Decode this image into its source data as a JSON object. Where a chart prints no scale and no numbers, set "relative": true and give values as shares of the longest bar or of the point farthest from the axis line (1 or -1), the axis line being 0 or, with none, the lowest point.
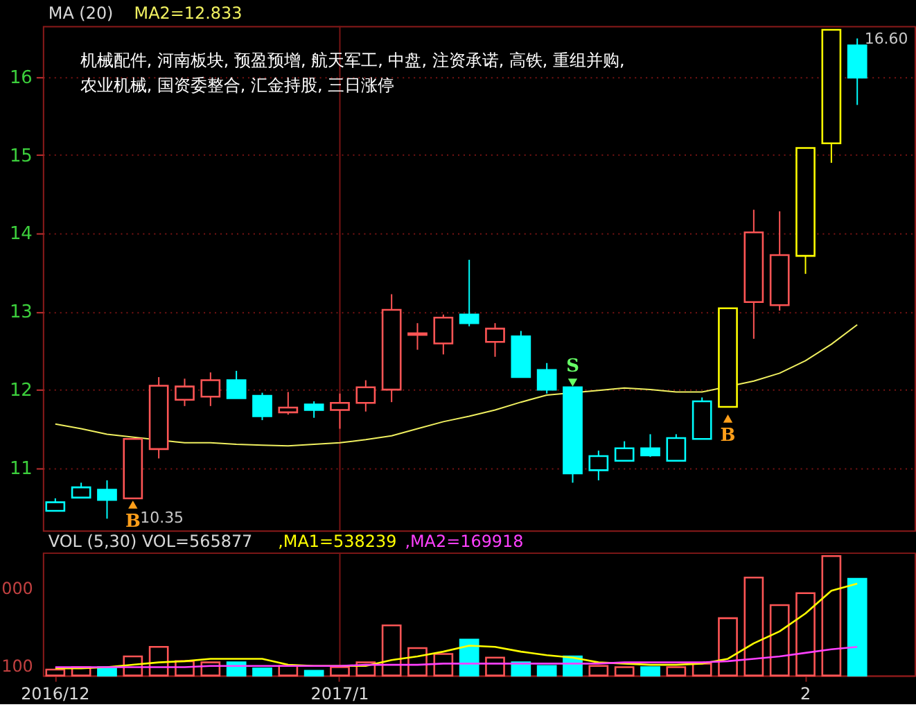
{
  "chart_data": [
    {
      "type": "candlestick",
      "legend_title": "MA (20)",
      "legend": "top left",
      "categories": [
        "2016/12",
        null,
        null,
        null,
        null,
        null,
        null,
        null,
        null,
        null,
        null,
        "2017/1",
        null,
        null,
        null,
        null,
        null,
        null,
        null,
        null,
        null,
        null,
        null,
        null,
        null,
        null,
        null,
        null,
        null,
        "2",
        null,
        null
      ],
      "ohlc": [
        [
          10.45,
          10.61,
          10.45,
          10.56
        ],
        [
          10.62,
          10.81,
          10.62,
          10.75
        ],
        [
          10.72,
          10.84,
          10.35,
          10.59
        ],
        [
          10.61,
          11.37,
          10.61,
          11.37
        ],
        [
          11.24,
          12.16,
          11.12,
          12.05
        ],
        [
          11.87,
          12.14,
          11.79,
          12.04
        ],
        [
          11.91,
          12.22,
          11.79,
          12.12
        ],
        [
          12.12,
          12.24,
          11.89,
          11.89
        ],
        [
          11.92,
          11.96,
          11.61,
          11.66
        ],
        [
          11.71,
          11.97,
          11.68,
          11.77
        ],
        [
          11.81,
          11.85,
          11.64,
          11.74
        ],
        [
          11.74,
          11.95,
          11.5,
          11.83
        ],
        [
          11.83,
          12.12,
          11.72,
          12.03
        ],
        [
          12.0,
          13.22,
          11.84,
          13.02
        ],
        [
          12.7,
          12.85,
          12.51,
          12.72
        ],
        [
          12.59,
          12.96,
          12.45,
          12.92
        ],
        [
          12.96,
          13.66,
          12.81,
          12.85
        ],
        [
          12.61,
          12.85,
          12.42,
          12.78
        ],
        [
          12.68,
          12.75,
          12.16,
          12.16
        ],
        [
          12.25,
          12.34,
          11.95,
          12.0
        ],
        [
          12.03,
          12.03,
          10.81,
          10.93
        ],
        [
          10.97,
          11.22,
          10.84,
          11.15
        ],
        [
          11.09,
          11.34,
          11.09,
          11.25
        ],
        [
          11.25,
          11.43,
          11.14,
          11.16
        ],
        [
          11.09,
          11.43,
          11.09,
          11.38
        ],
        [
          11.37,
          11.9,
          11.37,
          11.85
        ],
        [
          11.78,
          13.04,
          11.78,
          13.04
        ],
        [
          13.12,
          14.3,
          12.65,
          14.01
        ],
        [
          13.08,
          14.28,
          13.01,
          13.72
        ],
        [
          13.71,
          15.09,
          13.48,
          15.09
        ],
        [
          15.15,
          16.6,
          14.9,
          16.6
        ],
        [
          16.4,
          16.49,
          15.64,
          15.99
        ]
      ],
      "colors": [
        "#00ffff",
        "#00ffff",
        "#00ffff",
        "#ff5555",
        "#ff5555",
        "#ff5555",
        "#ff5555",
        "#00ffff",
        "#00ffff",
        "#ff5555",
        "#00ffff",
        "#ff5555",
        "#ff5555",
        "#ff5555",
        "#ff5555",
        "#ff5555",
        "#00ffff",
        "#ff5555",
        "#00ffff",
        "#00ffff",
        "#00ffff",
        "#00ffff",
        "#00ffff",
        "#00ffff",
        "#00ffff",
        "#00ffff",
        "#ffff00",
        "#ff5555",
        "#ff5555",
        "#ffff00",
        "#ffff00",
        "#00ffff"
      ],
      "series": [
        {
          "name": "MA2=12.833",
          "type": "line",
          "color": "#f0f060",
          "values": [
            11.56,
            11.5,
            11.43,
            null,
            null,
            11.32,
            11.32,
            11.3,
            11.29,
            11.28,
            11.3,
            11.32,
            11.36,
            11.41,
            11.5,
            11.59,
            11.66,
            11.74,
            11.84,
            11.93,
            null,
            11.99,
            12.02,
            12.0,
            11.97,
            11.97,
            null,
            12.11,
            12.21,
            12.37,
            12.58,
            12.83
          ]
        },
        {
          "name": "B",
          "type": "scatter",
          "marker": "triangle",
          "color": "#ff9f1a",
          "values": [
            null,
            null,
            null,
            10.53,
            null,
            null,
            null,
            null,
            null,
            null,
            null,
            null,
            null,
            null,
            null,
            null,
            null,
            null,
            null,
            null,
            null,
            null,
            null,
            null,
            null,
            null,
            11.63,
            null,
            null,
            null,
            null,
            null
          ]
        },
        {
          "name": "S",
          "type": "scatter",
          "marker": "triangle",
          "color": "#66ff66",
          "values": [
            null,
            null,
            null,
            null,
            null,
            null,
            null,
            null,
            null,
            null,
            null,
            null,
            null,
            null,
            null,
            null,
            null,
            null,
            null,
            null,
            12.09,
            null,
            null,
            null,
            null,
            null,
            null,
            null,
            null,
            null,
            null,
            null
          ]
        }
      ],
      "value_labels": [
        null,
        null,
        "10.35",
        null,
        null,
        null,
        null,
        null,
        null,
        null,
        null,
        null,
        null,
        null,
        null,
        null,
        null,
        null,
        null,
        null,
        null,
        null,
        null,
        null,
        null,
        null,
        null,
        null,
        null,
        null,
        "16.60",
        null
      ],
      "annotations": [
        "机械配件, 河南板块, 预盈预增, 航天军工, 中盘, 注资承诺, 高铁, 重组并购, 农业机械, 国资委整合, 汇金持股, 三日涨停"
      ],
      "ylim": [
        10.2,
        16.65
      ],
      "yticks": [
        11,
        12,
        13,
        14,
        15,
        16
      ],
      "grid": "y",
      "tick_labels": "y",
      "ref_lines": [
        {
          "axis": "x",
          "value": "2017/1",
          "color": "#7a1414"
        }
      ]
    },
    {
      "type": "bar",
      "relative": true,
      "legend_title": "VOL (5,30) VOL=565877",
      "legend": "top left",
      "categories": [
        "2016/12",
        null,
        null,
        null,
        null,
        null,
        null,
        null,
        null,
        null,
        null,
        "2017/1",
        null,
        null,
        null,
        null,
        null,
        null,
        null,
        null,
        null,
        null,
        null,
        null,
        null,
        null,
        null,
        null,
        null,
        "2",
        null,
        null
      ],
      "series": [
        {
          "type": "bar",
          "colors": [
            "#ff5555",
            "#ff5555",
            "#00ffff",
            "#ff5555",
            "#ff5555",
            "#ff5555",
            "#ff5555",
            "#00ffff",
            "#00ffff",
            "#ff5555",
            "#00ffff",
            "#ff5555",
            "#ff5555",
            "#ff5555",
            "#ff5555",
            "#ff5555",
            "#00ffff",
            "#ff5555",
            "#00ffff",
            "#00ffff",
            "#00ffff",
            "#ff5555",
            "#ff5555",
            "#00ffff",
            "#ff5555",
            "#ff5555",
            "#ff5555",
            "#ff5555",
            "#ff5555",
            "#ff5555",
            "#ff5555",
            "#00ffff"
          ],
          "values": [
            0.05,
            0.07,
            0.07,
            0.16,
            0.24,
            0.12,
            0.11,
            0.11,
            0.06,
            0.08,
            0.04,
            0.07,
            0.11,
            0.42,
            0.23,
            0.18,
            0.3,
            0.15,
            0.11,
            0.08,
            0.16,
            0.08,
            0.07,
            0.07,
            0.07,
            0.1,
            0.48,
            0.82,
            0.59,
            0.69,
            1.0,
            0.81
          ]
        },
        {
          "name": ",MA1=538239",
          "type": "line",
          "color": "#ffff00",
          "values": [
            0.06,
            0.06,
            0.07,
            0.09,
            0.11,
            0.12,
            0.14,
            0.14,
            0.14,
            0.09,
            0.08,
            0.08,
            0.08,
            0.13,
            0.16,
            0.2,
            0.25,
            0.24,
            0.2,
            0.17,
            0.15,
            0.11,
            0.1,
            0.09,
            0.09,
            0.1,
            0.14,
            0.27,
            0.37,
            0.52,
            0.71,
            0.77
          ]
        },
        {
          "name": ",MA2=169918",
          "type": "line",
          "color": "#ff40ff",
          "values": [
            0.07,
            0.07,
            0.07,
            0.07,
            0.07,
            0.07,
            0.08,
            0.08,
            0.08,
            0.08,
            0.08,
            0.08,
            0.09,
            0.09,
            0.09,
            0.1,
            0.1,
            0.1,
            0.1,
            0.1,
            0.1,
            0.1,
            0.11,
            0.11,
            0.11,
            0.11,
            0.12,
            0.14,
            0.16,
            0.19,
            0.22,
            0.24
          ]
        }
      ],
      "annotations": [
        "000",
        "100"
      ],
      "tick_labels": "x",
      "ref_lines": [
        {
          "axis": "x",
          "value": "2017/1",
          "color": "#7a1414"
        }
      ]
    }
  ]
}
